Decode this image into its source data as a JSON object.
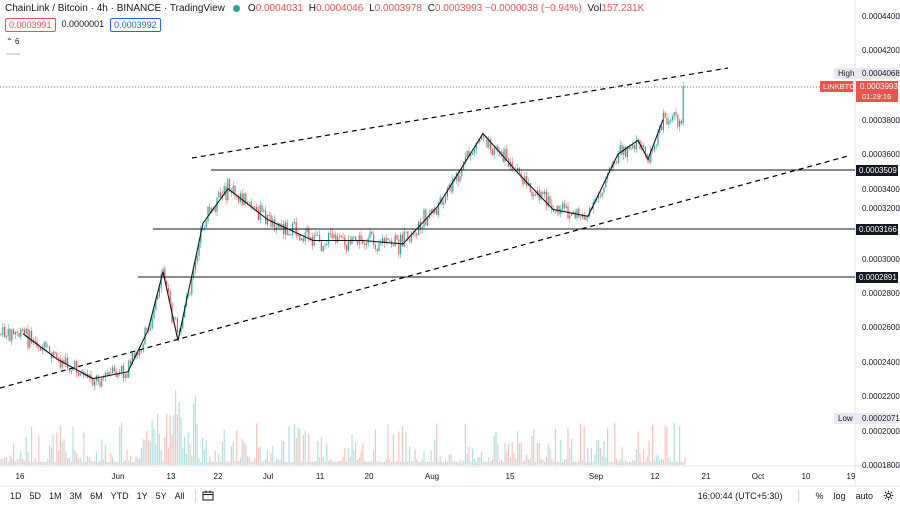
{
  "header": {
    "symbol_title": "ChainLink / Bitcoin · 4h · BINANCE · TradingView",
    "open_label": "O",
    "open": "0.0004031",
    "high_label": "H",
    "high": "0.0004046",
    "low_label": "L",
    "low": "0.0003978",
    "close_label": "C",
    "close": "0.0003993",
    "change": "−0.0000038 (−0.94%)",
    "vol_label": "Vol",
    "vol": "157.231K"
  },
  "order": {
    "sell": "0.0003991",
    "spread": "0.0000001",
    "buy": "0.0003992"
  },
  "indicator_toggle": "6",
  "price_axis": {
    "ticks": [
      "0.0004400",
      "0.0004200",
      "0.0004000",
      "0.0003800",
      "0.0003600",
      "0.0003400",
      "0.0003200",
      "0.0003000",
      "0.0002800",
      "0.0002600",
      "0.0002400",
      "0.0002200",
      "0.0002000",
      "0.0001800"
    ],
    "high_label": "High",
    "high_value": "0.0004068",
    "symbol_tag": "LINKBTC",
    "last_price": "0.0003993",
    "countdown": "01:29:16",
    "level_1": "0.0003509",
    "level_2": "0.0003166",
    "level_3": "0.0002891",
    "low_label": "Low",
    "low_value": "0.0002071"
  },
  "time_axis": [
    "16",
    "Jun",
    "13",
    "22",
    "Jul",
    "11",
    "20",
    "Aug",
    "15",
    "Sep",
    "12",
    "21",
    "Oct",
    "10",
    "19"
  ],
  "timeframes": [
    "1D",
    "5D",
    "1M",
    "3M",
    "6M",
    "YTD",
    "1Y",
    "5Y",
    "All"
  ],
  "footer": {
    "clock": "16:00:44 (UTC+5:30)",
    "percent": "%",
    "log": "log",
    "auto": "auto"
  },
  "colors": {
    "up": "#26a69a",
    "down": "#ef5350",
    "ma": "#131722",
    "trend": "#000000"
  },
  "icons": {
    "calendar": "calendar-range-icon",
    "settings": "gear-icon"
  },
  "chart_data": {
    "type": "candlestick",
    "title": "ChainLink / Bitcoin · 4h · BINANCE",
    "ylim": [
      0.00018,
      0.00045
    ],
    "moving_average_approx": [
      [
        "May 13",
        0.000256
      ],
      [
        "May 20",
        0.000241
      ],
      [
        "May 27",
        0.00023
      ],
      [
        "Jun 03",
        0.000234
      ],
      [
        "Jun 07",
        0.000258
      ],
      [
        "Jun 10",
        0.000292
      ],
      [
        "Jun 13",
        0.000252
      ],
      [
        "Jun 18",
        0.00032
      ],
      [
        "Jun 23",
        0.00034
      ],
      [
        "Jul 01",
        0.000322
      ],
      [
        "Jul 10",
        0.00031
      ],
      [
        "Jul 20",
        0.00031
      ],
      [
        "Jul 28",
        0.000308
      ],
      [
        "Aug 04",
        0.00033
      ],
      [
        "Aug 13",
        0.000372
      ],
      [
        "Aug 20",
        0.000349
      ],
      [
        "Aug 27",
        0.000328
      ],
      [
        "Sep 03",
        0.000324
      ],
      [
        "Sep 09",
        0.00036
      ],
      [
        "Sep 13",
        0.000368
      ],
      [
        "Sep 15",
        0.000357
      ],
      [
        "Sep 18",
        0.00038
      ]
    ],
    "horizontal_levels": [
      0.0003509,
      0.0003166,
      0.0002891
    ],
    "trend_channel": "upper line from ~0.000360 (Jun 22) to ~0.000406 (Sep 18); lower line from ~0.000226 (May) to ~0.000360 (Sep 21)",
    "period_high": 0.0004068,
    "period_low": 0.0002071,
    "last": 0.0003993
  }
}
